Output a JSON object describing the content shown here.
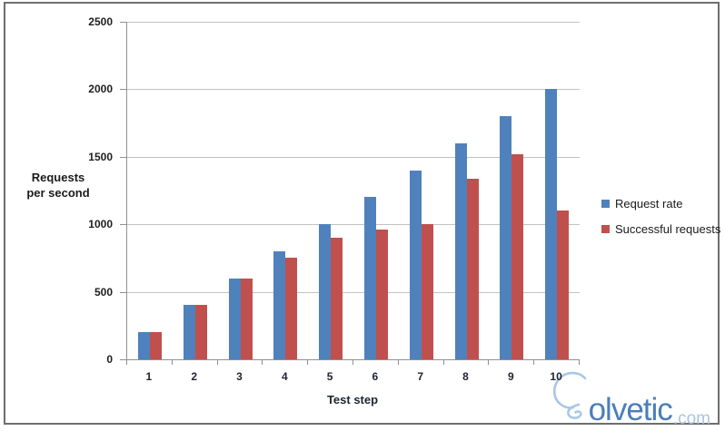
{
  "chart_data": {
    "type": "bar",
    "categories": [
      "1",
      "2",
      "3",
      "4",
      "5",
      "6",
      "7",
      "8",
      "9",
      "10"
    ],
    "series": [
      {
        "name": "Request rate",
        "color": "#4f81bd",
        "values": [
          200,
          400,
          600,
          800,
          1000,
          1200,
          1400,
          1600,
          1800,
          2000
        ]
      },
      {
        "name": "Successful requests",
        "color": "#c0504d",
        "values": [
          200,
          400,
          600,
          750,
          900,
          960,
          1000,
          1340,
          1520,
          1100
        ]
      }
    ],
    "xlabel": "Test step",
    "ylabel_lines": [
      "Requests",
      "per second"
    ],
    "ylim": [
      0,
      2500
    ],
    "yticks": [
      0,
      500,
      1000,
      1500,
      2000,
      2500
    ],
    "grid": true,
    "legend_position": "right"
  },
  "branding": {
    "logo_text": "olvetic",
    "logo_suffix": ".com"
  },
  "colors": {
    "bar_blue": "#4f81bd",
    "bar_red": "#c0504d",
    "gridline": "#c2c2c2",
    "axis": "#909090",
    "frame_border": "#6e6e6e",
    "logo_blue": "#4a7ebc",
    "logo_light_blue": "#a9c4e4",
    "bulb_outline": "#a9c7e9"
  }
}
